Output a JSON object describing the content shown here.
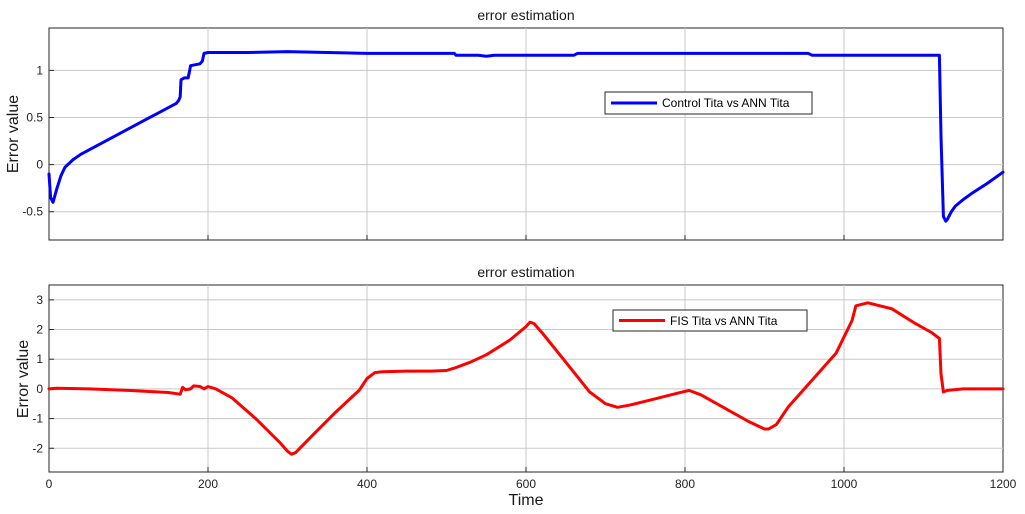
{
  "chart_data": [
    {
      "type": "line",
      "title": "error estimation",
      "xlabel": "",
      "ylabel": "Error value",
      "xlim": [
        0,
        1200
      ],
      "ylim": [
        -0.8,
        1.45
      ],
      "xticks": [
        0,
        200,
        400,
        600,
        800,
        1000,
        1200
      ],
      "yticks": [
        -0.5,
        0,
        0.5,
        1
      ],
      "ytick_labels": [
        "-0.5",
        "0",
        "0.5",
        "1"
      ],
      "show_x_tick_labels": false,
      "grid": true,
      "legend_position": "right-center",
      "series": [
        {
          "name": "Control Tita vs ANN Tita",
          "color": "#0000ff",
          "x": [
            0,
            2,
            5,
            10,
            15,
            20,
            30,
            40,
            60,
            80,
            100,
            120,
            140,
            160,
            163,
            165,
            166,
            170,
            175,
            177,
            178,
            190,
            193,
            195,
            200,
            250,
            300,
            350,
            400,
            450,
            510,
            512,
            540,
            550,
            560,
            600,
            660,
            665,
            700,
            800,
            900,
            955,
            960,
            1000,
            1100,
            1120,
            1122,
            1125,
            1128,
            1130,
            1135,
            1140,
            1150,
            1160,
            1180,
            1200
          ],
          "y": [
            -0.1,
            -0.35,
            -0.4,
            -0.25,
            -0.12,
            -0.03,
            0.05,
            0.11,
            0.2,
            0.29,
            0.38,
            0.47,
            0.56,
            0.65,
            0.68,
            0.72,
            0.9,
            0.92,
            0.92,
            1.0,
            1.05,
            1.07,
            1.1,
            1.18,
            1.19,
            1.19,
            1.2,
            1.19,
            1.18,
            1.18,
            1.18,
            1.16,
            1.16,
            1.15,
            1.16,
            1.16,
            1.16,
            1.18,
            1.18,
            1.18,
            1.18,
            1.18,
            1.16,
            1.16,
            1.16,
            1.16,
            0.3,
            -0.55,
            -0.6,
            -0.58,
            -0.5,
            -0.44,
            -0.37,
            -0.31,
            -0.2,
            -0.08
          ]
        }
      ]
    },
    {
      "type": "line",
      "title": "error estimation",
      "xlabel": "Time",
      "ylabel": "Error value",
      "xlim": [
        0,
        1200
      ],
      "ylim": [
        -2.8,
        3.5
      ],
      "xticks": [
        0,
        200,
        400,
        600,
        800,
        1000,
        1200
      ],
      "xtick_labels": [
        "0",
        "200",
        "400",
        "600",
        "800",
        "1000",
        "1200"
      ],
      "yticks": [
        -2,
        -1,
        0,
        1,
        2,
        3
      ],
      "ytick_labels": [
        "-2",
        "-1",
        "0",
        "1",
        "2",
        "3"
      ],
      "grid": true,
      "legend_position": "top-right",
      "series": [
        {
          "name": "FIS Tita vs ANN Tita",
          "color": "#ff0000",
          "x": [
            0,
            10,
            50,
            100,
            150,
            165,
            168,
            172,
            178,
            182,
            190,
            195,
            200,
            210,
            230,
            260,
            290,
            300,
            305,
            310,
            330,
            360,
            390,
            400,
            410,
            420,
            450,
            480,
            500,
            510,
            530,
            550,
            580,
            600,
            605,
            610,
            620,
            650,
            680,
            700,
            715,
            730,
            760,
            790,
            805,
            820,
            850,
            880,
            900,
            905,
            915,
            930,
            960,
            990,
            1010,
            1015,
            1030,
            1060,
            1090,
            1110,
            1120,
            1122,
            1125,
            1130,
            1150,
            1200
          ],
          "y": [
            0.0,
            0.02,
            0.0,
            -0.05,
            -0.12,
            -0.18,
            0.05,
            -0.03,
            0.0,
            0.1,
            0.08,
            0.0,
            0.08,
            0.0,
            -0.3,
            -1.0,
            -1.8,
            -2.1,
            -2.2,
            -2.15,
            -1.6,
            -0.8,
            -0.05,
            0.35,
            0.55,
            0.58,
            0.6,
            0.6,
            0.62,
            0.7,
            0.9,
            1.15,
            1.65,
            2.1,
            2.25,
            2.2,
            1.9,
            0.9,
            -0.1,
            -0.5,
            -0.62,
            -0.55,
            -0.35,
            -0.15,
            -0.05,
            -0.2,
            -0.65,
            -1.1,
            -1.35,
            -1.35,
            -1.2,
            -0.6,
            0.3,
            1.2,
            2.3,
            2.8,
            2.9,
            2.7,
            2.2,
            1.9,
            1.7,
            0.5,
            -0.1,
            -0.05,
            0.0,
            0.0
          ]
        }
      ]
    }
  ]
}
